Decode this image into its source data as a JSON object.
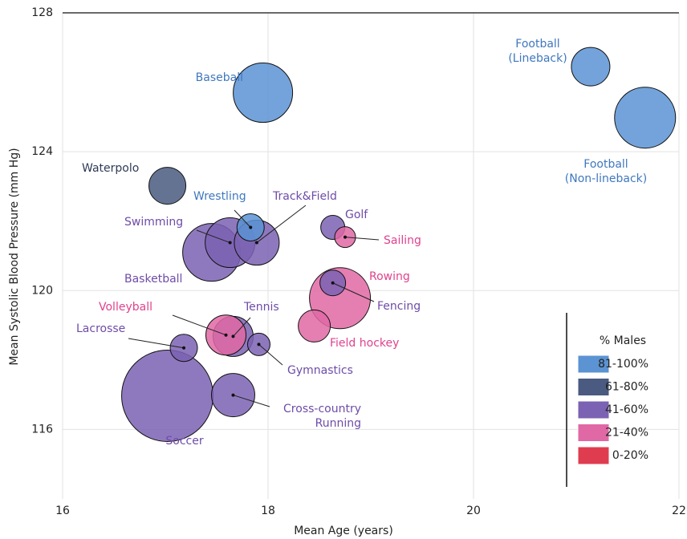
{
  "chart_data": {
    "type": "bubble",
    "x_label": "Mean Age (years)",
    "y_label": "Mean Systolic Blood Pressure (mm Hg)",
    "xlim": [
      16,
      22
    ],
    "xticks": [
      16,
      18,
      20,
      22
    ],
    "ylim": [
      114,
      128
    ],
    "yticks": [
      116,
      120,
      124,
      128
    ],
    "grid": true,
    "legend_title": "% Males",
    "legend_position": "lower right",
    "series": [
      {
        "name": "81-100%",
        "color": "#5b93d3",
        "label_color": "#3f78bf",
        "labels": [
          [
            "Baseball"
          ],
          [
            "Football",
            "(Lineback)"
          ],
          [
            "Football",
            "(Non-lineback)"
          ],
          [
            "Wrestling"
          ]
        ],
        "x": [
          17.95,
          21.14,
          21.67,
          17.83
        ],
        "values": [
          125.7,
          126.45,
          124.98,
          121.82
        ],
        "sizes": [
          37,
          24,
          38,
          17
        ]
      },
      {
        "name": "61-80%",
        "color": "#4a5a80",
        "label_color": "#2e3a55",
        "labels": [
          [
            "Waterpolo"
          ]
        ],
        "x": [
          17.02
        ],
        "values": [
          123.02
        ],
        "sizes": [
          23
        ]
      },
      {
        "name": "41-60%",
        "color": "#7b62b3",
        "label_color": "#6e4ca8",
        "labels": [
          [
            "Basketball"
          ],
          [
            "Swimming"
          ],
          [
            "Track&Field"
          ],
          [
            "Golf"
          ],
          [
            "Fencing"
          ],
          [
            "Tennis"
          ],
          [
            "Gymnastics"
          ],
          [
            "Lacrosse"
          ],
          [
            "Soccer"
          ],
          [
            "Cross-country",
            "Running"
          ]
        ],
        "x": [
          17.45,
          17.63,
          17.89,
          18.63,
          18.63,
          17.66,
          17.91,
          17.18,
          17.02,
          17.66
        ],
        "values": [
          121.1,
          121.38,
          121.38,
          121.82,
          120.22,
          118.68,
          118.45,
          118.35,
          116.97,
          116.99
        ],
        "sizes": [
          36,
          31,
          28,
          15,
          16,
          25,
          14,
          17,
          57,
          27
        ]
      },
      {
        "name": "21-40%",
        "color": "#e068a5",
        "label_color": "#e0428e",
        "labels": [
          [
            "Sailing"
          ],
          [
            "Rowing"
          ],
          [
            "Field hockey"
          ],
          [
            "Volleyball"
          ]
        ],
        "x": [
          18.75,
          18.7,
          18.45,
          17.59
        ],
        "values": [
          121.54,
          119.78,
          118.98,
          118.72
        ],
        "sizes": [
          13,
          38,
          20,
          25
        ]
      },
      {
        "name": "0-20%",
        "color": "#e03c50",
        "label_color": "#e0394f",
        "labels": [],
        "x": [],
        "values": [],
        "sizes": []
      }
    ]
  }
}
